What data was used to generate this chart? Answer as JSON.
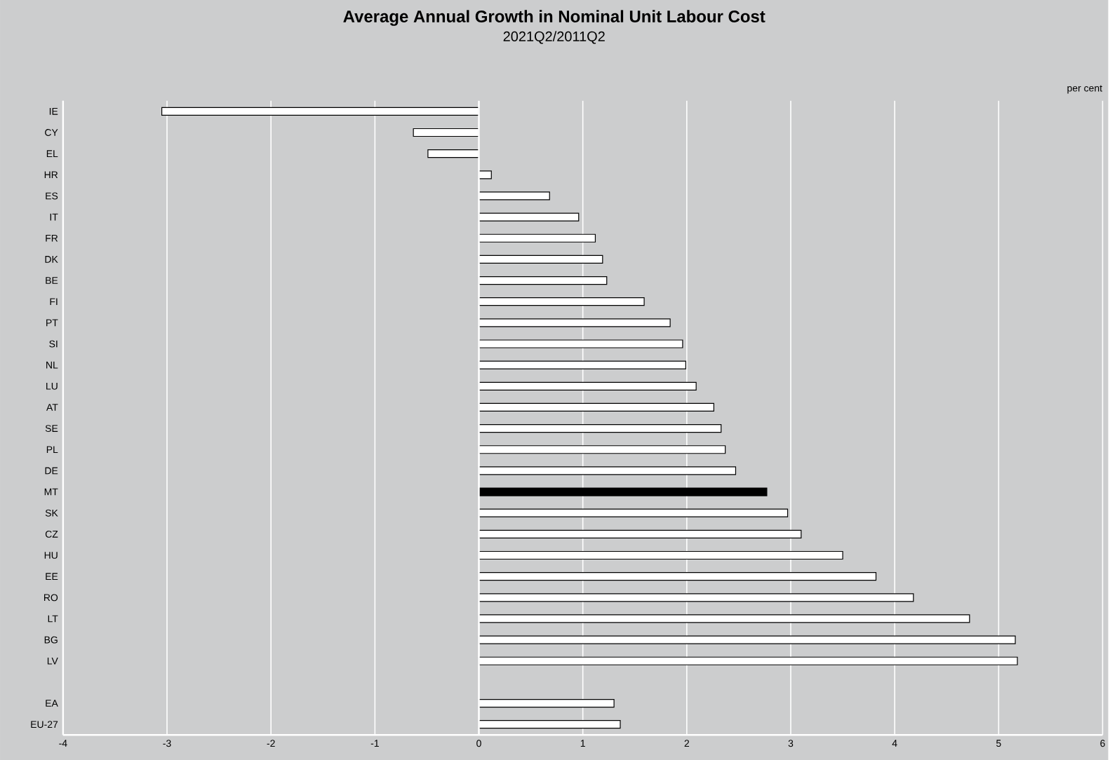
{
  "chart_data": {
    "type": "bar",
    "orientation": "horizontal",
    "title": "Average Annual Growth in Nominal Unit Labour Cost",
    "subtitle": "2021Q2/2011Q2",
    "annotations": [
      "per cent"
    ],
    "categories": [
      "IE",
      "CY",
      "EL",
      "HR",
      "ES",
      "IT",
      "FR",
      "DK",
      "BE",
      "FI",
      "PT",
      "SI",
      "NL",
      "LU",
      "AT",
      "SE",
      "PL",
      "DE",
      "MT",
      "SK",
      "CZ",
      "HU",
      "EE",
      "RO",
      "LT",
      "BG",
      "LV",
      null,
      "EA",
      "EU-27"
    ],
    "values": [
      -3.05,
      -0.63,
      -0.49,
      0.12,
      0.68,
      0.96,
      1.12,
      1.19,
      1.23,
      1.59,
      1.84,
      1.96,
      1.99,
      2.09,
      2.26,
      2.33,
      2.37,
      2.47,
      2.77,
      2.97,
      3.1,
      3.5,
      3.82,
      4.18,
      4.72,
      5.16,
      5.18,
      null,
      1.3,
      1.36
    ],
    "colors": [
      "#ffffff",
      "#ffffff",
      "#ffffff",
      "#ffffff",
      "#ffffff",
      "#ffffff",
      "#ffffff",
      "#ffffff",
      "#ffffff",
      "#ffffff",
      "#ffffff",
      "#ffffff",
      "#ffffff",
      "#ffffff",
      "#ffffff",
      "#ffffff",
      "#ffffff",
      "#ffffff",
      "#000000",
      "#ffffff",
      "#ffffff",
      "#ffffff",
      "#ffffff",
      "#ffffff",
      "#ffffff",
      "#ffffff",
      "#ffffff",
      "#ffffff",
      "#ffffff",
      "#ffffff"
    ],
    "xlim": [
      -4,
      6
    ],
    "xticks": [
      -4,
      -3,
      -2,
      -1,
      0,
      1,
      2,
      3,
      4,
      5,
      6
    ],
    "grid": "x"
  }
}
